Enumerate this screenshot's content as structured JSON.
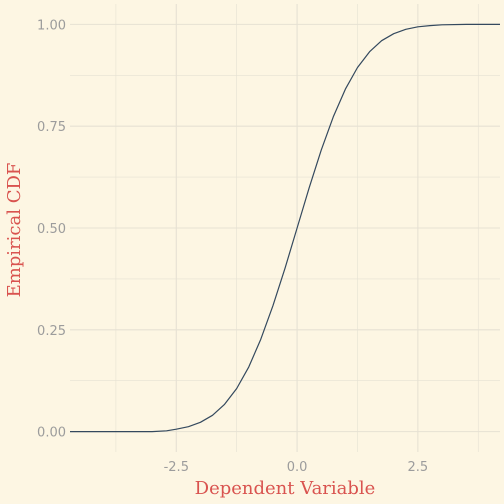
{
  "chart_data": {
    "type": "line",
    "title": "",
    "xlabel": "Dependent Variable",
    "ylabel": "Empirical CDF",
    "xlim": [
      -4.7,
      4.2
    ],
    "ylim": [
      -0.05,
      1.05
    ],
    "x_ticks": [
      -2.5,
      0.0,
      2.5
    ],
    "x_tick_labels": [
      "-2.5",
      "0.0",
      "2.5"
    ],
    "y_ticks": [
      0.0,
      0.25,
      0.5,
      0.75,
      1.0
    ],
    "y_tick_labels": [
      "0.00",
      "0.25",
      "0.50",
      "0.75",
      "1.00"
    ],
    "grid": true,
    "legend": "none",
    "series": [
      {
        "x": [
          -4.7,
          -3.0,
          -2.7,
          -2.5,
          -2.25,
          -2.0,
          -1.75,
          -1.5,
          -1.25,
          -1.0,
          -0.75,
          -0.5,
          -0.25,
          0.0,
          0.25,
          0.5,
          0.75,
          1.0,
          1.25,
          1.5,
          1.75,
          2.0,
          2.25,
          2.5,
          2.75,
          3.0,
          3.5,
          4.2
        ],
        "y": [
          0.0,
          0.0,
          0.002,
          0.006,
          0.012,
          0.023,
          0.04,
          0.067,
          0.106,
          0.159,
          0.227,
          0.309,
          0.401,
          0.5,
          0.599,
          0.691,
          0.773,
          0.841,
          0.894,
          0.933,
          0.96,
          0.977,
          0.988,
          0.994,
          0.997,
          0.999,
          1.0,
          1.0
        ]
      }
    ],
    "colors": {
      "background": "#fdf6e3",
      "grid": "#e6e1d3",
      "line": "#34495e",
      "tick_text": "#9c9c9c",
      "axis_title": "#d9534f"
    }
  }
}
